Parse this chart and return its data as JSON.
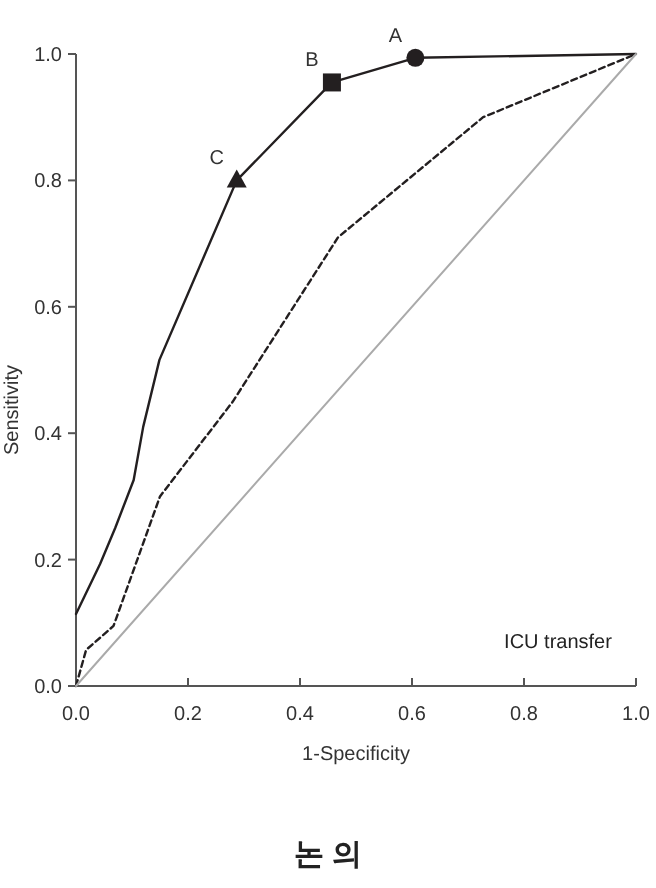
{
  "chart_data": {
    "type": "line",
    "xlabel": "1-Specificity",
    "ylabel": "Sensitivity",
    "xlim": [
      0,
      1
    ],
    "ylim": [
      0,
      1
    ],
    "xticks": [
      {
        "value": 0,
        "label": "0.0"
      },
      0.2,
      0.4,
      0.6,
      0.8,
      {
        "value": 1,
        "label": "1.0"
      }
    ],
    "yticks": [
      {
        "value": 0,
        "label": "0.0"
      },
      0.2,
      0.4,
      0.6,
      0.8,
      {
        "value": 1,
        "label": "1.0"
      }
    ],
    "series": [
      {
        "color": "#231f20",
        "line_style": "solid",
        "marker": "none",
        "x": [
          0,
          0.043,
          0.07,
          0.103,
          0.12,
          0.149,
          0.287,
          0.457,
          0.606,
          1
        ],
        "values": [
          0.114,
          0.193,
          0.25,
          0.326,
          0.41,
          0.516,
          0.8,
          0.955,
          0.994,
          1
        ]
      },
      {
        "color": "#231f20",
        "line_style": "dashed",
        "marker": "none",
        "x": [
          0,
          0.018,
          0.067,
          0.15,
          0.28,
          0.468,
          0.727,
          1
        ],
        "values": [
          0,
          0.057,
          0.095,
          0.3,
          0.45,
          0.71,
          0.9,
          1
        ]
      },
      {
        "color": "#aaaaaa",
        "line_style": "solid",
        "marker": "none",
        "x": [
          0,
          1
        ],
        "values": [
          0,
          1
        ]
      },
      {
        "type": "scatter",
        "color": "#231f20",
        "marker": "circle",
        "x": [
          0.606
        ],
        "values": [
          0.994
        ]
      },
      {
        "type": "scatter",
        "color": "#231f20",
        "marker": "square",
        "x": [
          0.457
        ],
        "values": [
          0.955
        ]
      },
      {
        "type": "scatter",
        "color": "#231f20",
        "marker": "triangle",
        "x": [
          0.287
        ],
        "values": [
          0.8
        ]
      }
    ],
    "annotations": [
      {
        "text": "A",
        "x": 0.606,
        "y": 0.994
      },
      {
        "text": "B",
        "x": 0.457,
        "y": 0.955
      },
      {
        "text": "C",
        "x": 0.287,
        "y": 0.8
      },
      "ICU transfer",
      "논 의"
    ]
  }
}
